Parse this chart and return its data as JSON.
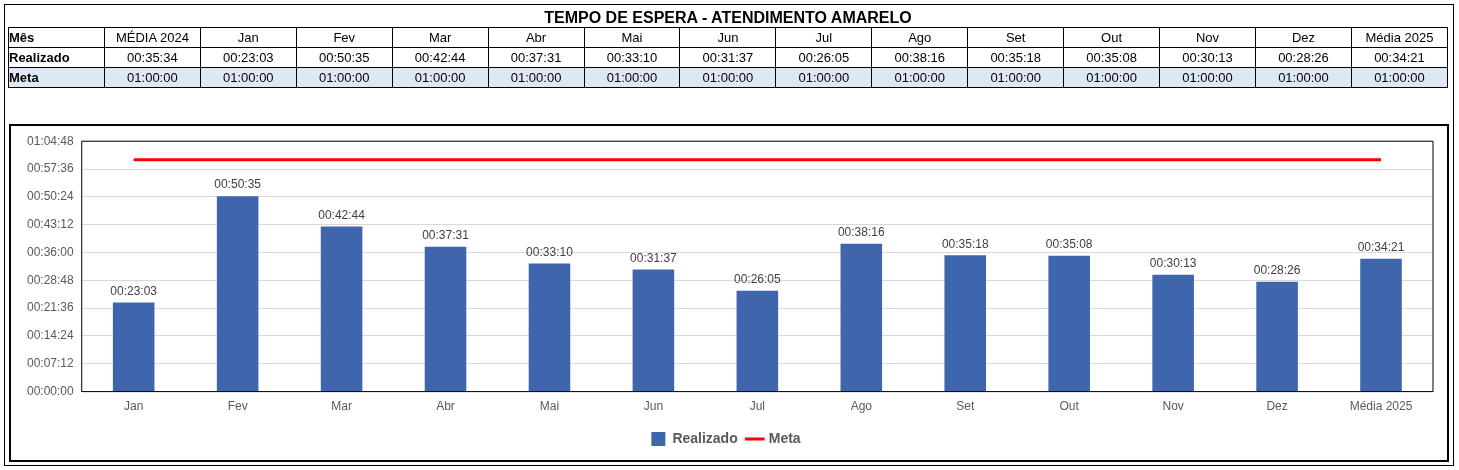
{
  "chart_data": {
    "type": "bar",
    "title": "TEMPO DE ESPERA - ATENDIMENTO AMARELO",
    "categories": [
      "Jan",
      "Fev",
      "Mar",
      "Abr",
      "Mai",
      "Jun",
      "Jul",
      "Ago",
      "Set",
      "Out",
      "Nov",
      "Dez",
      "Média 2025"
    ],
    "series": [
      {
        "name": "Realizado",
        "color": "#3f65ad",
        "values": [
          0.38417,
          0.84306,
          0.71222,
          0.62528,
          0.55278,
          0.52694,
          0.43472,
          0.63778,
          0.58833,
          0.58556,
          0.50361,
          0.47389,
          0.5725
        ],
        "value_labels": [
          "00:23:03",
          "00:50:35",
          "00:42:44",
          "00:37:31",
          "00:33:10",
          "00:31:37",
          "00:26:05",
          "00:38:16",
          "00:35:18",
          "00:35:08",
          "00:30:13",
          "00:28:26",
          "00:34:21"
        ]
      },
      {
        "name": "Meta",
        "type": "line",
        "color": "#ff0000",
        "values": [
          1,
          1,
          1,
          1,
          1,
          1,
          1,
          1,
          1,
          1,
          1,
          1,
          1
        ]
      }
    ],
    "annotations": [
      "Mês",
      "MÉDIA 2024",
      "00:35:34",
      "01:00:00",
      "01:00:00",
      "01:00:00",
      "01:00:00",
      "01:00:00",
      "01:00:00",
      "01:00:00",
      "01:00:00",
      "01:00:00",
      "01:00:00",
      "01:00:00",
      "01:00:00",
      "01:00:00",
      "01:00:00"
    ],
    "ylim": [
      0,
      1.08
    ],
    "yticks": [
      {
        "value": 0,
        "label": "00:00:00"
      },
      {
        "value": 0.12,
        "label": "00:07:12"
      },
      {
        "value": 0.24,
        "label": "00:14:24"
      },
      {
        "value": 0.36,
        "label": "00:21:36"
      },
      {
        "value": 0.48,
        "label": "00:28:48"
      },
      {
        "value": 0.6,
        "label": "00:36:00"
      },
      {
        "value": 0.72,
        "label": "00:43:12"
      },
      {
        "value": 0.84,
        "label": "00:50:24"
      },
      {
        "value": 0.96,
        "label": "00:57:36"
      },
      {
        "value": 1.08,
        "label": "01:04:48"
      }
    ],
    "grid": "y",
    "legend": "bottom",
    "marker": "none",
    "line_style": "solid"
  }
}
